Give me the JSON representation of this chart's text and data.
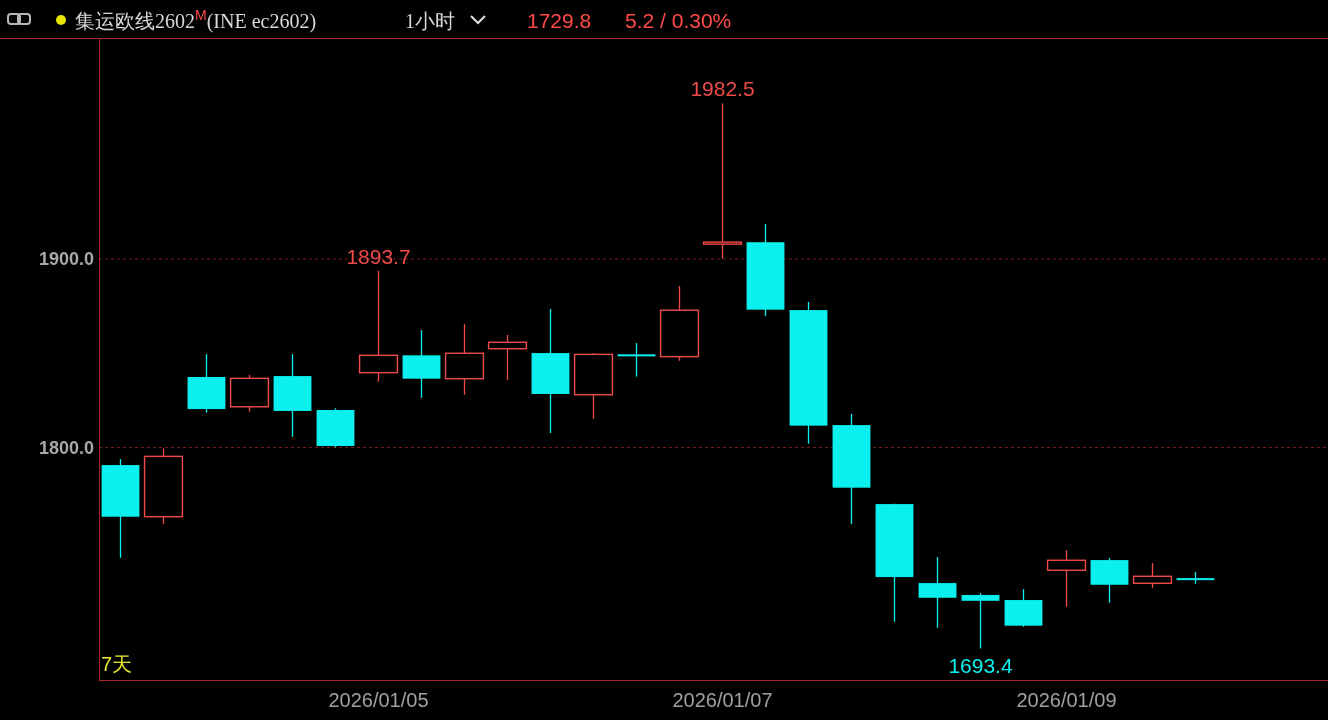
{
  "chart_data": {
    "type": "candlestick",
    "title": "集运欧线2602$^{M}$(INE ec2602)",
    "subtitle": "1小时",
    "annotations": [
      "1729.8",
      "5.2 / 0.30%",
      "7天",
      {
        "text": "1893.7",
        "x": "2026/01/05",
        "y": 1893.7
      },
      {
        "text": "1982.5",
        "x": "2026/01/07",
        "y": 1982.5
      },
      "1693.4"
    ],
    "categories": [
      null,
      null,
      null,
      null,
      null,
      null,
      "2026/01/05",
      null,
      null,
      null,
      null,
      null,
      null,
      null,
      "2026/01/07",
      null,
      null,
      null,
      null,
      null,
      null,
      null,
      "2026/01/09",
      null,
      null,
      null
    ],
    "ohlc": [
      [
        1790.7,
        1793.9,
        1741.5,
        1763.3
      ],
      [
        1763.3,
        1799.6,
        1759.4,
        1795.3
      ],
      [
        1837.4,
        1849.6,
        1818.5,
        1820.4
      ],
      [
        1821.6,
        1838.5,
        1819.0,
        1836.7
      ],
      [
        1837.9,
        1849.6,
        1805.7,
        1819.4
      ],
      [
        1819.9,
        1820.8,
        1800.1,
        1800.8
      ],
      [
        1839.7,
        1893.7,
        1834.9,
        1848.9
      ],
      [
        1848.9,
        1862.3,
        1826.4,
        1836.5
      ],
      [
        1836.5,
        1865.4,
        1828.0,
        1850.0
      ],
      [
        1852.4,
        1859.7,
        1835.8,
        1855.8
      ],
      [
        1850.1,
        1873.5,
        1807.7,
        1828.4
      ],
      [
        1828.0,
        1850.1,
        1815.3,
        1849.4
      ],
      [
        1849.4,
        1855.4,
        1837.6,
        1848.4
      ],
      [
        1848.2,
        1885.7,
        1846.0,
        1872.8
      ],
      [
        1908.2,
        1982.5,
        1900.2,
        1908.6
      ],
      [
        1908.9,
        1918.6,
        1869.8,
        1873.1
      ],
      [
        1872.9,
        1877.2,
        1802.0,
        1811.6
      ],
      [
        1811.9,
        1817.8,
        1759.4,
        1778.7
      ],
      [
        1770.0,
        1770.2,
        1707.6,
        1731.3
      ],
      [
        1728.1,
        1741.9,
        1704.4,
        1720.3
      ],
      [
        1721.8,
        1722.8,
        1693.4,
        1718.7
      ],
      [
        1719.1,
        1724.9,
        1704.9,
        1705.5
      ],
      [
        1734.9,
        1745.6,
        1715.5,
        1740.2
      ],
      [
        1740.3,
        1741.4,
        1717.7,
        1727.2
      ],
      [
        1728.0,
        1738.7,
        1725.6,
        1731.7
      ],
      [
        1730.6,
        1734.0,
        1727.7,
        1729.8
      ]
    ],
    "colors": [
      "#0af0ee",
      "#ef4b4b",
      "#0af0ee",
      "#ef4b4b",
      "#0af0ee",
      "#0af0ee",
      "#ef4b4b",
      "#0af0ee",
      "#ef4b4b",
      "#ef4b4b",
      "#0af0ee",
      "#ef4b4b",
      "#0af0ee",
      "#ef4b4b",
      "#ef4b4b",
      "#0af0ee",
      "#0af0ee",
      "#0af0ee",
      "#0af0ee",
      "#0af0ee",
      "#0af0ee",
      "#0af0ee",
      "#ef4b4b",
      "#0af0ee",
      "#ef4b4b",
      "#0af0ee"
    ],
    "ylim": [
      1676.7,
      2017.2
    ],
    "yticks": [
      {
        "value": 1900,
        "label": "1900.0"
      },
      {
        "value": 1800,
        "label": "1800.0"
      }
    ],
    "grid": "y"
  }
}
